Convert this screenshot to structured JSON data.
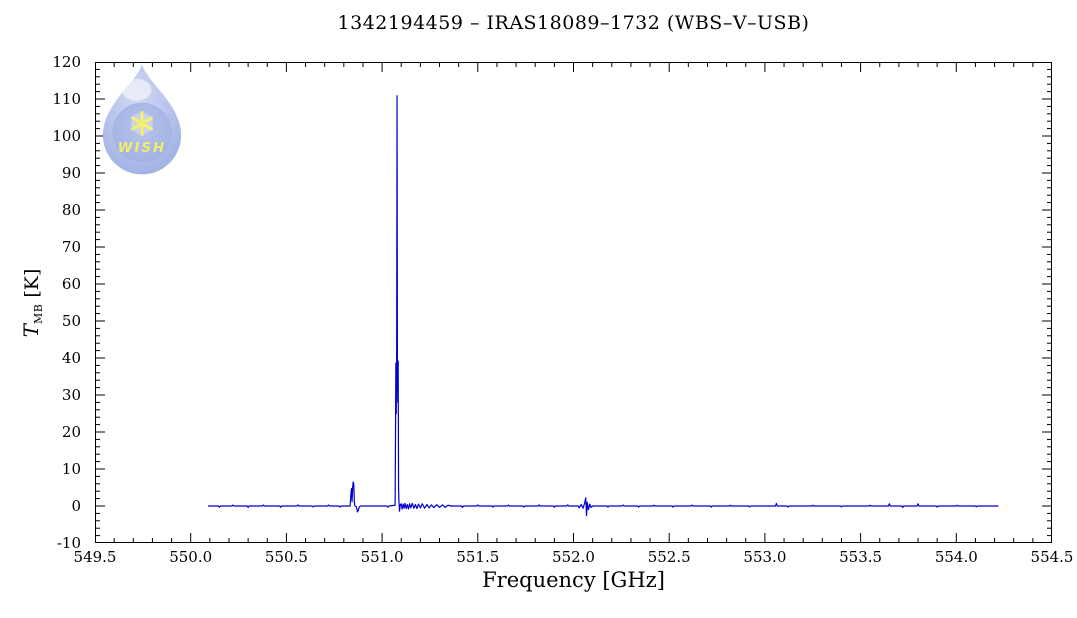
{
  "title": "1342194459 – IRAS18089–1732 (WBS–V–USB)",
  "colors": {
    "background": "#ffffff",
    "axis": "#000000",
    "spectrum_line": "#0000cc"
  },
  "watermark": {
    "text": "WISH",
    "star_color": "#f2ee55",
    "text_color": "#ece94f",
    "drop_outer": "#c9d2f0",
    "drop_rim": "#aab7e8",
    "drop_inner": "#8fa4de",
    "highlight": "#ffffff"
  },
  "chart_data": {
    "type": "line",
    "title": "1342194459 – IRAS18089–1732 (WBS–V–USB)",
    "xlabel": "Frequency [GHz]",
    "ylabel": "T_MB [K]",
    "ylabel_parts": {
      "main": "T",
      "sub": "MB",
      "unit": " [K]"
    },
    "xlim": [
      549.5,
      554.5
    ],
    "ylim": [
      -10,
      120
    ],
    "grid": false,
    "legend": null,
    "x_axis": {
      "major_step": 0.5,
      "minor_step": 0.1,
      "tick_labels": [
        "549.5",
        "550.0",
        "550.5",
        "551.0",
        "551.5",
        "552.0",
        "552.5",
        "553.0",
        "553.5",
        "554.0",
        "554.5"
      ]
    },
    "y_axis": {
      "major_step": 10,
      "minor_step": 2,
      "tick_labels": [
        "-10",
        "0",
        "10",
        "20",
        "30",
        "40",
        "50",
        "60",
        "70",
        "80",
        "90",
        "100",
        "110",
        "120"
      ]
    },
    "annotations": {
      "main_peak": {
        "frequency_ghz": 551.08,
        "peak_k": 111,
        "base_peak_k": 39
      },
      "secondary_peak": {
        "frequency_ghz": 550.85,
        "peak_k": 6.5
      },
      "small_feature": {
        "frequency_ghz": 552.07,
        "up_k": 2.2,
        "down_k": -2.6
      },
      "data_range_ghz": [
        550.09,
        554.22
      ]
    },
    "series": [
      {
        "name": "spectrum",
        "color": "#0000cc",
        "points": [
          [
            550.09,
            0
          ],
          [
            550.145,
            0
          ],
          [
            550.15,
            -0.35
          ],
          [
            550.155,
            0
          ],
          [
            550.215,
            0
          ],
          [
            550.22,
            0.25
          ],
          [
            550.225,
            0
          ],
          [
            550.295,
            0
          ],
          [
            550.3,
            -0.4
          ],
          [
            550.305,
            0
          ],
          [
            550.375,
            0
          ],
          [
            550.38,
            0.25
          ],
          [
            550.385,
            0
          ],
          [
            550.465,
            0
          ],
          [
            550.47,
            -0.35
          ],
          [
            550.475,
            0
          ],
          [
            550.555,
            0
          ],
          [
            550.56,
            0.3
          ],
          [
            550.565,
            0
          ],
          [
            550.635,
            0
          ],
          [
            550.64,
            -0.25
          ],
          [
            550.645,
            0
          ],
          [
            550.715,
            0
          ],
          [
            550.72,
            0.25
          ],
          [
            550.725,
            0
          ],
          [
            550.775,
            0
          ],
          [
            550.78,
            -0.3
          ],
          [
            550.785,
            0
          ],
          [
            550.833,
            0
          ],
          [
            550.837,
            3.2
          ],
          [
            550.84,
            4.7
          ],
          [
            550.843,
            1.2
          ],
          [
            550.846,
            5.0
          ],
          [
            550.849,
            6.5
          ],
          [
            550.852,
            6.0
          ],
          [
            550.855,
            1.0
          ],
          [
            550.858,
            0
          ],
          [
            550.866,
            -0.2
          ],
          [
            550.871,
            -1.6
          ],
          [
            550.876,
            -1.1
          ],
          [
            550.881,
            -0.2
          ],
          [
            550.89,
            0
          ],
          [
            550.95,
            0
          ],
          [
            551.0,
            0
          ],
          [
            551.025,
            0
          ],
          [
            551.03,
            -0.3
          ],
          [
            551.035,
            0
          ],
          [
            551.068,
            0.2
          ],
          [
            551.072,
            38.6
          ],
          [
            551.074,
            25
          ],
          [
            551.076,
            39.0
          ],
          [
            551.078,
            110.9
          ],
          [
            551.08,
            38.5
          ],
          [
            551.082,
            28
          ],
          [
            551.084,
            39.2
          ],
          [
            551.086,
            5
          ],
          [
            551.088,
            1.2
          ],
          [
            551.091,
            -1.4
          ],
          [
            551.095,
            0.3
          ],
          [
            551.1,
            0.6
          ],
          [
            551.105,
            -0.8
          ],
          [
            551.11,
            0.5
          ],
          [
            551.115,
            -0.6
          ],
          [
            551.12,
            0.7
          ],
          [
            551.126,
            -0.7
          ],
          [
            551.132,
            0.4
          ],
          [
            551.138,
            -0.8
          ],
          [
            551.144,
            0.6
          ],
          [
            551.15,
            -0.5
          ],
          [
            551.158,
            0.7
          ],
          [
            551.166,
            -0.6
          ],
          [
            551.174,
            0.4
          ],
          [
            551.182,
            -0.7
          ],
          [
            551.19,
            0.5
          ],
          [
            551.2,
            -0.5
          ],
          [
            551.21,
            0.6
          ],
          [
            551.222,
            -0.6
          ],
          [
            551.234,
            0.4
          ],
          [
            551.246,
            -0.5
          ],
          [
            551.258,
            0.3
          ],
          [
            551.27,
            -0.45
          ],
          [
            551.285,
            0.35
          ],
          [
            551.3,
            -0.4
          ],
          [
            551.315,
            0.3
          ],
          [
            551.33,
            -0.35
          ],
          [
            551.345,
            0.2
          ],
          [
            551.36,
            0
          ],
          [
            551.415,
            0
          ],
          [
            551.42,
            -0.4
          ],
          [
            551.425,
            0
          ],
          [
            551.495,
            0
          ],
          [
            551.5,
            0.3
          ],
          [
            551.505,
            0
          ],
          [
            551.575,
            0
          ],
          [
            551.58,
            -0.3
          ],
          [
            551.585,
            0
          ],
          [
            551.655,
            0
          ],
          [
            551.66,
            0.25
          ],
          [
            551.665,
            0
          ],
          [
            551.735,
            0
          ],
          [
            551.74,
            -0.3
          ],
          [
            551.745,
            0
          ],
          [
            551.815,
            0
          ],
          [
            551.82,
            0.3
          ],
          [
            551.825,
            0
          ],
          [
            551.895,
            0
          ],
          [
            551.9,
            -0.35
          ],
          [
            551.905,
            0
          ],
          [
            551.965,
            0
          ],
          [
            551.97,
            0.3
          ],
          [
            551.975,
            0
          ],
          [
            552.025,
            0
          ],
          [
            552.03,
            -0.5
          ],
          [
            552.04,
            0.4
          ],
          [
            552.05,
            -0.6
          ],
          [
            552.058,
            0.8
          ],
          [
            552.064,
            2.2
          ],
          [
            552.068,
            -2.6
          ],
          [
            552.072,
            1.0
          ],
          [
            552.078,
            -1.0
          ],
          [
            552.085,
            0.5
          ],
          [
            552.092,
            -0.4
          ],
          [
            552.1,
            0
          ],
          [
            552.175,
            0
          ],
          [
            552.18,
            -0.3
          ],
          [
            552.185,
            0
          ],
          [
            552.255,
            0
          ],
          [
            552.26,
            0.25
          ],
          [
            552.265,
            0
          ],
          [
            552.335,
            0
          ],
          [
            552.34,
            -0.3
          ],
          [
            552.345,
            0
          ],
          [
            552.415,
            0
          ],
          [
            552.42,
            0.2
          ],
          [
            552.425,
            0
          ],
          [
            552.515,
            0
          ],
          [
            552.52,
            -0.3
          ],
          [
            552.525,
            0
          ],
          [
            552.615,
            0
          ],
          [
            552.62,
            0.25
          ],
          [
            552.625,
            0
          ],
          [
            552.715,
            0
          ],
          [
            552.72,
            -0.3
          ],
          [
            552.725,
            0
          ],
          [
            552.815,
            0
          ],
          [
            552.82,
            0.2
          ],
          [
            552.825,
            0
          ],
          [
            552.915,
            0
          ],
          [
            552.92,
            -0.25
          ],
          [
            552.925,
            0
          ],
          [
            553.055,
            0
          ],
          [
            553.06,
            0.7
          ],
          [
            553.065,
            0
          ],
          [
            553.115,
            0
          ],
          [
            553.12,
            -0.3
          ],
          [
            553.125,
            0
          ],
          [
            553.245,
            0
          ],
          [
            553.25,
            0.2
          ],
          [
            553.255,
            0
          ],
          [
            553.395,
            0
          ],
          [
            553.4,
            -0.25
          ],
          [
            553.405,
            0
          ],
          [
            553.545,
            0
          ],
          [
            553.55,
            0.2
          ],
          [
            553.555,
            0
          ],
          [
            553.645,
            0
          ],
          [
            553.65,
            0.6
          ],
          [
            553.655,
            0
          ],
          [
            553.715,
            0
          ],
          [
            553.72,
            -0.4
          ],
          [
            553.725,
            0
          ],
          [
            553.795,
            0
          ],
          [
            553.8,
            0.6
          ],
          [
            553.805,
            0
          ],
          [
            553.895,
            0
          ],
          [
            553.9,
            -0.3
          ],
          [
            553.905,
            0
          ],
          [
            554.0,
            0
          ],
          [
            554.005,
            0.2
          ],
          [
            554.01,
            0
          ],
          [
            554.1,
            0
          ],
          [
            554.105,
            -0.2
          ],
          [
            554.11,
            0
          ],
          [
            554.22,
            0
          ]
        ]
      }
    ]
  }
}
